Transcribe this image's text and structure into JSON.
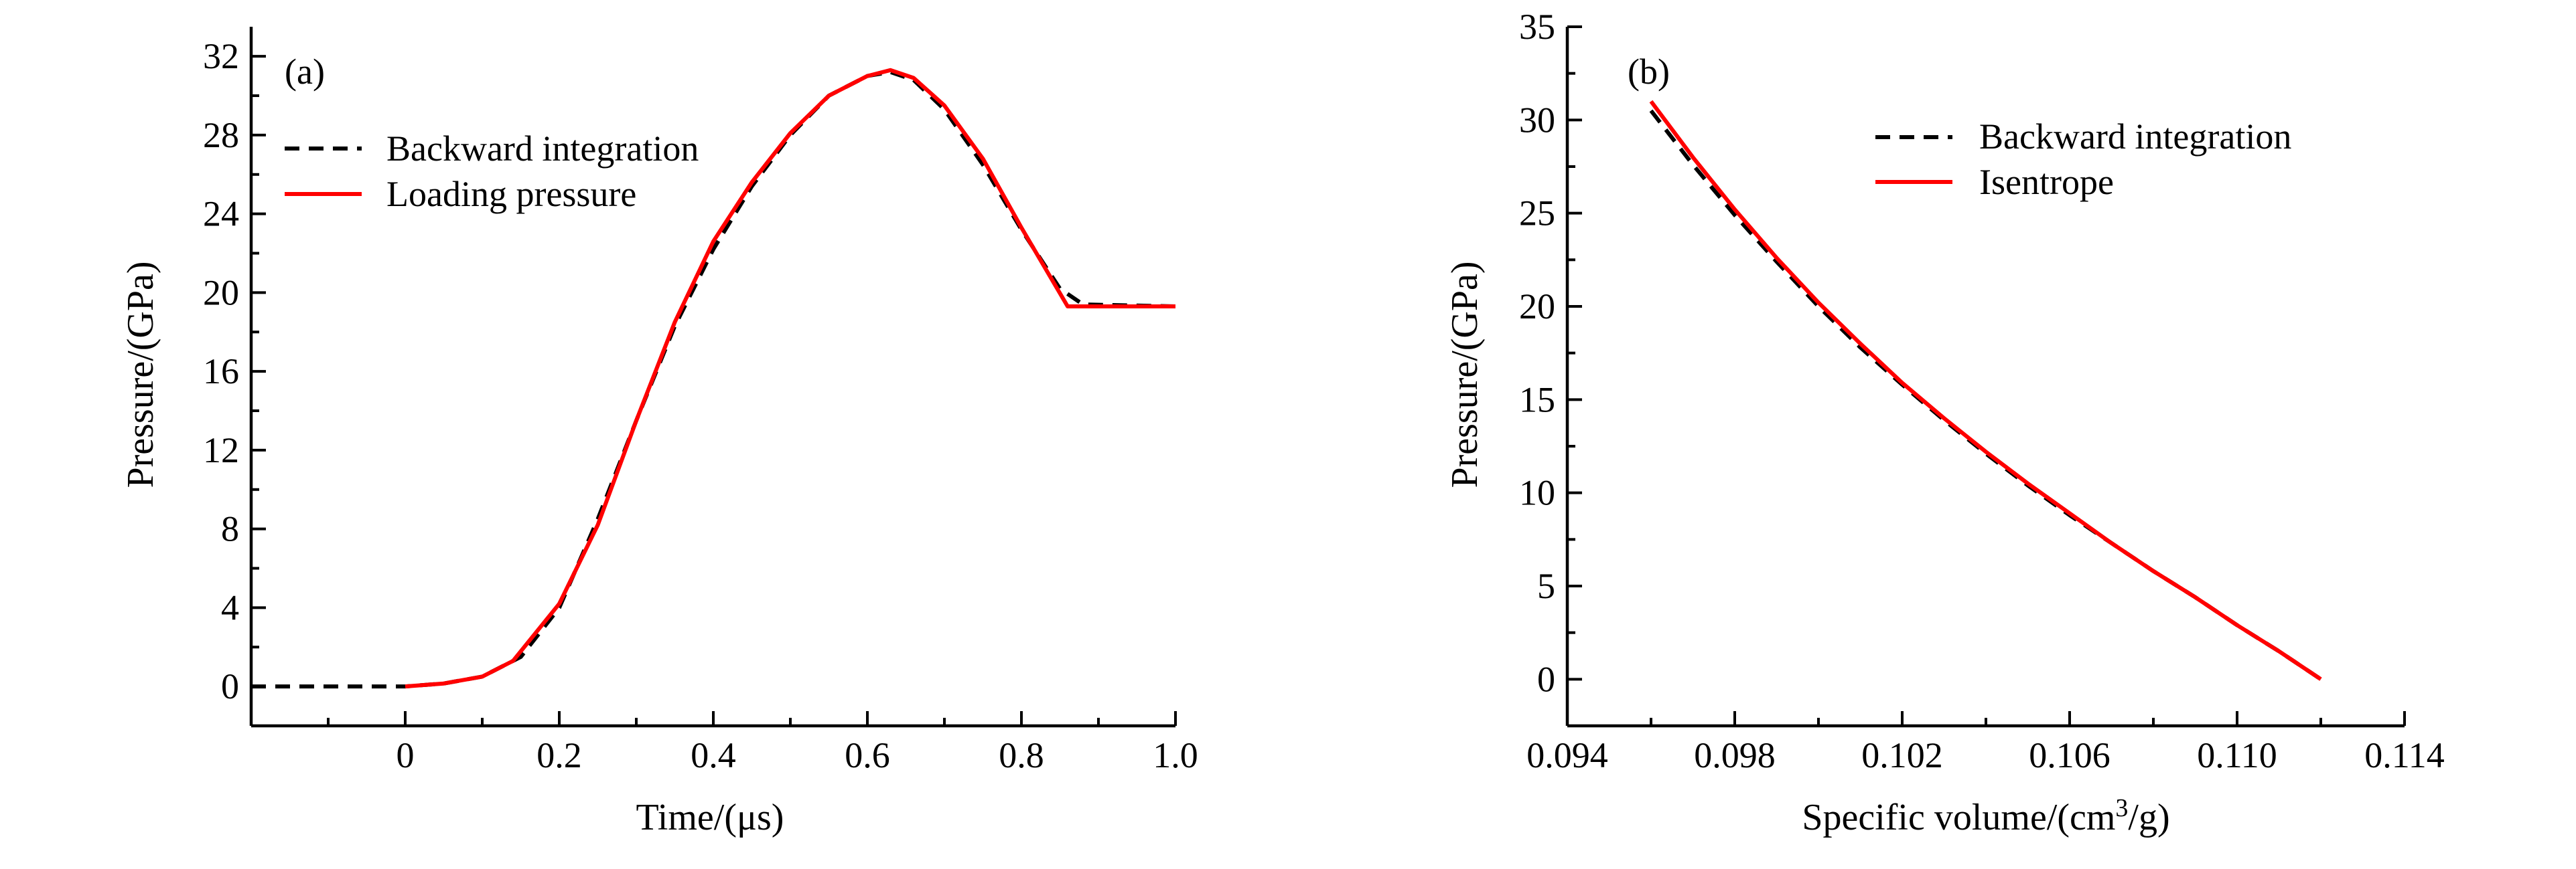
{
  "chart_data": [
    {
      "type": "line",
      "panel_label": "(a)",
      "xlabel": "Time/(μs)",
      "ylabel": "Pressure/(GPa)",
      "xlim": [
        -0.2,
        1.0
      ],
      "ylim": [
        -2,
        33.5
      ],
      "xticks": [
        0,
        0.2,
        0.4,
        0.6,
        0.8,
        1.0
      ],
      "xtick_labels": [
        "0",
        "0.2",
        "0.4",
        "0.6",
        "0.8",
        "1.0"
      ],
      "yticks": [
        0,
        4,
        8,
        12,
        16,
        20,
        24,
        28,
        32
      ],
      "ytick_labels": [
        "0",
        "4",
        "8",
        "12",
        "16",
        "20",
        "24",
        "28",
        "32"
      ],
      "grid": false,
      "legend_position": "top-left",
      "series": [
        {
          "name": "Backward integration",
          "color": "#000000",
          "style": "dashed",
          "x": [
            -0.2,
            0.0,
            0.05,
            0.1,
            0.15,
            0.2,
            0.25,
            0.3,
            0.35,
            0.4,
            0.45,
            0.5,
            0.55,
            0.6,
            0.63,
            0.66,
            0.7,
            0.75,
            0.8,
            0.85,
            0.88,
            1.0
          ],
          "y": [
            0.0,
            0.0,
            0.15,
            0.5,
            1.5,
            4.0,
            8.5,
            13.5,
            18.3,
            22.2,
            25.4,
            28.0,
            30.0,
            31.0,
            31.2,
            30.8,
            29.3,
            26.5,
            23.2,
            20.2,
            19.4,
            19.3
          ]
        },
        {
          "name": "Loading pressure",
          "color": "#ff0000",
          "style": "solid",
          "x": [
            0.0,
            0.05,
            0.1,
            0.14,
            0.2,
            0.25,
            0.3,
            0.35,
            0.4,
            0.45,
            0.5,
            0.55,
            0.6,
            0.63,
            0.66,
            0.7,
            0.75,
            0.8,
            0.86,
            1.0
          ],
          "y": [
            0.0,
            0.15,
            0.5,
            1.3,
            4.2,
            8.2,
            13.5,
            18.5,
            22.6,
            25.6,
            28.1,
            30.0,
            31.0,
            31.3,
            30.9,
            29.5,
            26.8,
            23.3,
            19.3,
            19.3
          ]
        }
      ]
    },
    {
      "type": "line",
      "panel_label": "(b)",
      "xlabel": "Specific volume/(cm³/g)",
      "ylabel": "Pressure/(GPa)",
      "xlim": [
        0.094,
        0.114
      ],
      "ylim": [
        -2.5,
        35
      ],
      "xticks": [
        0.094,
        0.098,
        0.102,
        0.106,
        0.11,
        0.114
      ],
      "xtick_labels": [
        "0.094",
        "0.098",
        "0.102",
        "0.106",
        "0.110",
        "0.114"
      ],
      "yticks": [
        0,
        5,
        10,
        15,
        20,
        25,
        30,
        35
      ],
      "ytick_labels": [
        "0",
        "5",
        "10",
        "15",
        "20",
        "25",
        "30",
        "35"
      ],
      "grid": false,
      "legend_position": "top-right",
      "series": [
        {
          "name": "Backward integration",
          "color": "#000000",
          "style": "dashed",
          "x": [
            0.096,
            0.097,
            0.098,
            0.099,
            0.1,
            0.101,
            0.102,
            0.103,
            0.104,
            0.105,
            0.106,
            0.107,
            0.108,
            0.109,
            0.11,
            0.111,
            0.112
          ],
          "y": [
            30.5,
            27.6,
            24.9,
            22.4,
            20.0,
            17.8,
            15.8,
            13.9,
            12.1,
            10.4,
            8.8,
            7.3,
            5.8,
            4.4,
            2.9,
            1.5,
            0.0
          ]
        },
        {
          "name": "Isentrope",
          "color": "#ff0000",
          "style": "solid",
          "x": [
            0.096,
            0.097,
            0.098,
            0.099,
            0.1,
            0.101,
            0.102,
            0.103,
            0.104,
            0.105,
            0.106,
            0.107,
            0.108,
            0.109,
            0.11,
            0.111,
            0.112
          ],
          "y": [
            31.0,
            28.0,
            25.2,
            22.6,
            20.2,
            18.0,
            15.9,
            14.0,
            12.2,
            10.5,
            8.9,
            7.3,
            5.8,
            4.4,
            2.9,
            1.5,
            0.0
          ]
        }
      ]
    }
  ]
}
